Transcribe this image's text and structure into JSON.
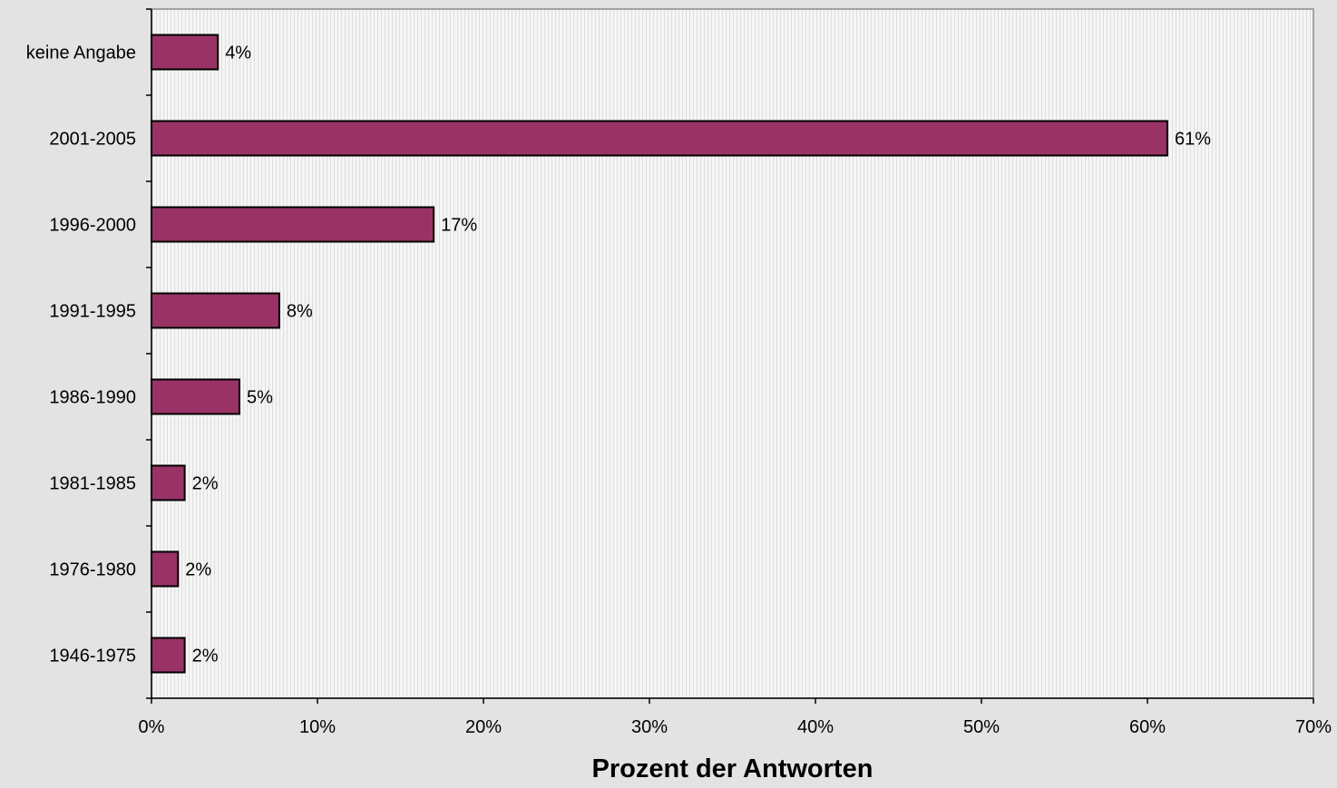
{
  "chart_data": {
    "type": "bar",
    "orientation": "horizontal",
    "title": "",
    "xlabel": "Prozent der Antworten",
    "ylabel": "",
    "categories": [
      "keine Angabe",
      "2001-2005",
      "1996-2000",
      "1991-1995",
      "1986-1990",
      "1981-1985",
      "1976-1980",
      "1946-1975"
    ],
    "values": [
      4.0,
      61.2,
      17.0,
      7.7,
      5.3,
      2.0,
      1.6,
      2.0
    ],
    "data_labels": [
      "4%",
      "61%",
      "17%",
      "8%",
      "5%",
      "2%",
      "2%",
      "2%"
    ],
    "xlim": [
      0,
      70
    ],
    "x_ticks": [
      0,
      10,
      20,
      30,
      40,
      50,
      60,
      70
    ],
    "x_tick_labels": [
      "0%",
      "10%",
      "20%",
      "30%",
      "40%",
      "50%",
      "60%",
      "70%"
    ],
    "grid": false,
    "legend": "none",
    "colors": {
      "bar_fill": "#993366",
      "bar_stroke": "#000000",
      "plot_background": "#f4f4f4",
      "page_background": "#e3e3e3"
    }
  }
}
